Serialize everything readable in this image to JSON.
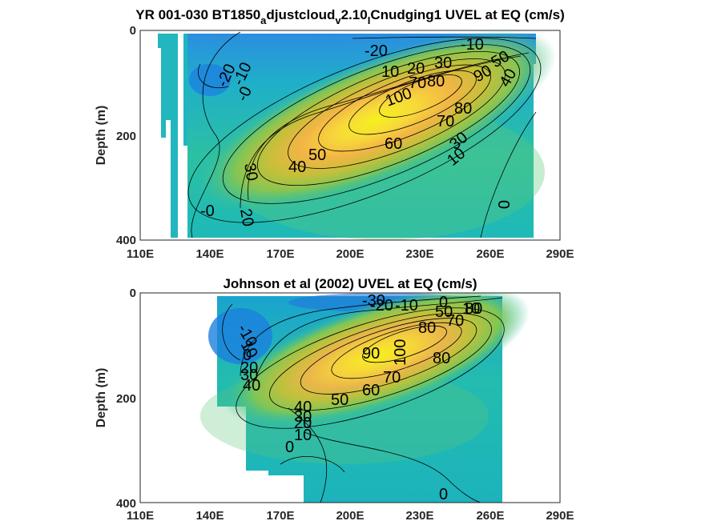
{
  "chart_data": [
    {
      "type": "heatmap",
      "title_parts": [
        "YR 001-030 BT1850",
        "a",
        "djustcloud",
        "v",
        "2.10",
        "I",
        "Cnudging1 UVEL at EQ (cm/s)"
      ],
      "ylabel": "Depth (m)",
      "xlim": [
        110,
        290
      ],
      "ylim": [
        0,
        400
      ],
      "x_ticks": [
        "110E",
        "140E",
        "170E",
        "200E",
        "230E",
        "260E",
        "290E"
      ],
      "y_ticks": [
        "0",
        "200",
        "400"
      ],
      "contour_labels": [
        "-20",
        "-20",
        "-10",
        "-10",
        "-0",
        "-0",
        "0",
        "0",
        "10",
        "10",
        "20",
        "20",
        "30",
        "30",
        "30",
        "40",
        "40",
        "50",
        "50",
        "60",
        "70",
        "70",
        "80",
        "80",
        "90",
        "100"
      ],
      "jet_core": {
        "lon": 235,
        "depth": 115,
        "max_speed": 105
      }
    },
    {
      "type": "heatmap",
      "title": "Johnson et al (2002) UVEL at EQ (cm/s)",
      "ylabel": "Depth (m)",
      "xlim": [
        110,
        290
      ],
      "ylim": [
        0,
        400
      ],
      "x_ticks": [
        "110E",
        "140E",
        "170E",
        "200E",
        "230E",
        "260E",
        "290E"
      ],
      "y_ticks": [
        "0",
        "200",
        "400"
      ],
      "contour_labels": [
        "-30",
        "-20",
        "-10",
        "-10",
        "10",
        "10",
        "0",
        "0",
        "0",
        "20",
        "30",
        "40",
        "40",
        "30",
        "20",
        "10",
        "50",
        "50",
        "60",
        "70",
        "70",
        "80",
        "80",
        "80",
        "90",
        "100",
        "0"
      ],
      "jet_core": {
        "lon": 225,
        "depth": 105,
        "max_speed": 95
      }
    }
  ]
}
